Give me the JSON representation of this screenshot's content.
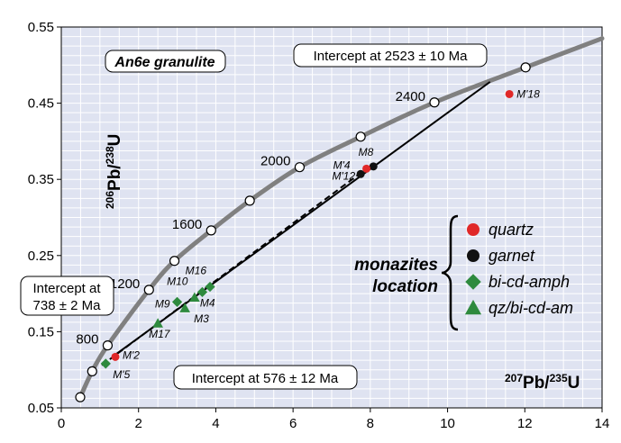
{
  "chart_data": {
    "type": "scatter",
    "title": "An6e granulite",
    "xlabel": {
      "base": "Pb/",
      "num": "207",
      "den": "235",
      "tail": "U"
    },
    "ylabel": {
      "num": "206",
      "base": "Pb/",
      "den": "238",
      "tail": "U"
    },
    "xlim": [
      0,
      14
    ],
    "ylim": [
      0.05,
      0.55
    ],
    "xticks": [
      0,
      2,
      4,
      6,
      8,
      10,
      12,
      14
    ],
    "yticks": [
      0.05,
      0.15,
      0.25,
      0.35,
      0.45,
      0.55
    ],
    "ytick_labels": [
      "0.05",
      "0.15",
      "0.25",
      "0.35",
      "0.45",
      "0.55"
    ],
    "grid": true,
    "concordia_ages": [
      {
        "age": 400,
        "x": 0.49,
        "y": 0.064,
        "label": ""
      },
      {
        "age": 600,
        "x": 0.8,
        "y": 0.098,
        "label": ""
      },
      {
        "age": 800,
        "x": 1.2,
        "y": 0.132,
        "label": "800"
      },
      {
        "age": 1200,
        "x": 2.27,
        "y": 0.205,
        "label": "1200"
      },
      {
        "age": 1400,
        "x": 2.93,
        "y": 0.243,
        "label": ""
      },
      {
        "age": 1600,
        "x": 3.88,
        "y": 0.283,
        "label": "1600"
      },
      {
        "age": 1800,
        "x": 4.88,
        "y": 0.322,
        "label": ""
      },
      {
        "age": 2000,
        "x": 6.17,
        "y": 0.366,
        "label": "2000"
      },
      {
        "age": 2200,
        "x": 7.75,
        "y": 0.406,
        "label": ""
      },
      {
        "age": 2400,
        "x": 9.66,
        "y": 0.451,
        "label": "2400"
      },
      {
        "age": 2600,
        "x": 12.02,
        "y": 0.497,
        "label": ""
      }
    ],
    "concordia_extra": [
      [
        14.0,
        0.535
      ]
    ],
    "discordia_solid": [
      [
        1.35,
        0.118
      ],
      [
        11.1,
        0.478
      ]
    ],
    "discordia_dashed": [
      [
        1.05,
        0.106
      ],
      [
        7.9,
        0.364
      ]
    ],
    "points": [
      {
        "label": "M'18",
        "x": 11.6,
        "y": 0.462,
        "group": "quartz"
      },
      {
        "label": "M8",
        "x": 8.08,
        "y": 0.367,
        "group": "garnet"
      },
      {
        "label": "M'4",
        "x": 7.9,
        "y": 0.364,
        "group": "quartz"
      },
      {
        "label": "M'12",
        "x": 7.75,
        "y": 0.357,
        "group": "garnet"
      },
      {
        "label": "M'2",
        "x": 1.4,
        "y": 0.117,
        "group": "quartz"
      },
      {
        "label": "M'5",
        "x": 1.15,
        "y": 0.108,
        "group": "bi-cd-amph"
      },
      {
        "label": "M16",
        "x": 3.85,
        "y": 0.209,
        "group": "bi-cd-amph"
      },
      {
        "label": "M10",
        "x": 3.65,
        "y": 0.202,
        "group": "bi-cd-amph"
      },
      {
        "label": "M9",
        "x": 3.0,
        "y": 0.189,
        "group": "bi-cd-amph"
      },
      {
        "label": "M4",
        "x": 3.45,
        "y": 0.195,
        "group": "qz/bi-cd-am"
      },
      {
        "label": "M3",
        "x": 3.2,
        "y": 0.181,
        "group": "qz/bi-cd-am"
      },
      {
        "label": "M17",
        "x": 2.5,
        "y": 0.161,
        "group": "qz/bi-cd-am"
      }
    ],
    "annotations": {
      "upper_intercept": "Intercept at 2523 ± 10 Ma",
      "lower_intercept_1": "Intercept at",
      "lower_intercept_2": "738 ± 2 Ma",
      "lower_intercept_b": "Intercept at 576 ± 12 Ma"
    },
    "legend": {
      "title_1": "monazites",
      "title_2": "location",
      "placement": "right",
      "entries": [
        {
          "group": "quartz",
          "label": "quartz",
          "marker": "circle",
          "color": "#e02828"
        },
        {
          "group": "garnet",
          "label": "garnet",
          "marker": "circle",
          "color": "#111111"
        },
        {
          "group": "bi-cd-amph",
          "label": "bi-cd-amph",
          "marker": "diamond",
          "color": "#2e8a3e"
        },
        {
          "group": "qz/bi-cd-am",
          "label": "qz/bi-cd-am",
          "marker": "triangle",
          "color": "#2e8a3e"
        }
      ]
    },
    "colors": {
      "background": "#dfe3f1",
      "grid": "#ffffff",
      "concordia": "#808080",
      "line": "#000000"
    }
  }
}
